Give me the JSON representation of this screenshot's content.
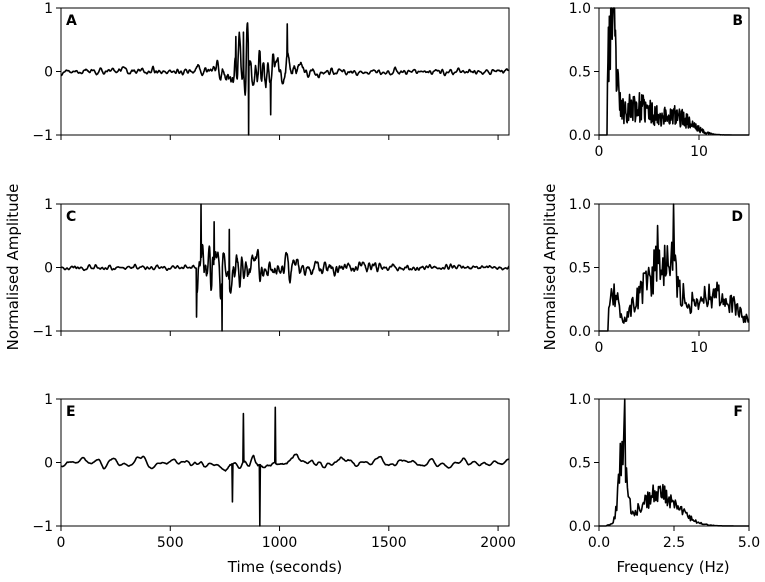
{
  "figure": {
    "xlabel_time": "Time (seconds)",
    "xlabel_freq": "Frequency (Hz)",
    "ylabel_left": "Normalised Amplitude",
    "ylabel_right": "Normalised Amplitude"
  },
  "colors": {
    "line": "#000000",
    "axis": "#000000",
    "background": "#ffffff"
  },
  "chart_data": [
    {
      "id": "A",
      "letter": "A",
      "type": "line",
      "xlim": [
        0,
        2050
      ],
      "ylim": [
        -1,
        1
      ],
      "xticks": [
        0,
        500,
        1000,
        1500,
        2000
      ],
      "show_xtick_labels": false,
      "yticks": [
        -1,
        0,
        1
      ],
      "ytick_labels": [
        "−1",
        "0",
        "1"
      ],
      "signal": {
        "kind": "time",
        "n": 1300,
        "period_s": 12,
        "noise": 0.06,
        "packets": [
          {
            "center": 900,
            "width": 170,
            "amp": 0.45
          }
        ],
        "spikes": [
          {
            "t": 858,
            "v": -1.0
          },
          {
            "t": 1035,
            "v": 0.75
          },
          {
            "t": 835,
            "v": 0.62
          },
          {
            "t": 800,
            "v": 0.55
          },
          {
            "t": 960,
            "v": -0.68
          }
        ],
        "seed": 11
      }
    },
    {
      "id": "B",
      "letter": "B",
      "type": "line",
      "xlim": [
        0,
        15
      ],
      "ylim": [
        0,
        1
      ],
      "xticks": [
        0,
        10
      ],
      "xtick_labels": [
        "0",
        "10"
      ],
      "show_xtick_labels": true,
      "yticks": [
        0,
        0.5,
        1
      ],
      "ytick_labels": [
        "0.0",
        "0.5",
        "1.0"
      ],
      "signal": {
        "kind": "spectrum",
        "n": 320,
        "onset": 0.8,
        "noise": 0.55,
        "peaks": [
          {
            "center": 1.3,
            "width": 0.5,
            "amp": 0.75
          },
          {
            "center": 3.5,
            "width": 3.0,
            "amp": 0.22
          },
          {
            "center": 8.0,
            "width": 2.0,
            "amp": 0.12
          }
        ],
        "fixed": [
          {
            "x": 1.2,
            "v": 1.0
          },
          {
            "x": 1.5,
            "v": 0.98
          }
        ],
        "seed": 23
      }
    },
    {
      "id": "C",
      "letter": "C",
      "type": "line",
      "xlim": [
        0,
        2050
      ],
      "ylim": [
        -1,
        1
      ],
      "xticks": [
        0,
        500,
        1000,
        1500,
        2000
      ],
      "show_xtick_labels": false,
      "yticks": [
        -1,
        0,
        1
      ],
      "ytick_labels": [
        "−1",
        "0",
        "1"
      ],
      "signal": {
        "kind": "time",
        "n": 1300,
        "period_s": 14,
        "noise": 0.03,
        "onset": 620,
        "decay": 300,
        "coda_amp": 0.55,
        "spikes": [
          {
            "t": 640,
            "v": 1.0
          },
          {
            "t": 737,
            "v": -1.0
          },
          {
            "t": 620,
            "v": -0.78
          },
          {
            "t": 700,
            "v": 0.72
          },
          {
            "t": 770,
            "v": 0.6
          }
        ],
        "seed": 37
      }
    },
    {
      "id": "D",
      "letter": "D",
      "type": "line",
      "xlim": [
        0,
        15
      ],
      "ylim": [
        0,
        1
      ],
      "xticks": [
        0,
        10
      ],
      "xtick_labels": [
        "0",
        "10"
      ],
      "show_xtick_labels": true,
      "yticks": [
        0,
        0.5,
        1
      ],
      "ytick_labels": [
        "0.0",
        "0.5",
        "1.0"
      ],
      "signal": {
        "kind": "spectrum",
        "n": 170,
        "onset": 0.9,
        "noise": 0.4,
        "peaks": [
          {
            "center": 1.5,
            "width": 0.6,
            "amp": 0.28
          },
          {
            "center": 4.0,
            "width": 1.5,
            "amp": 0.2
          },
          {
            "center": 6.5,
            "width": 1.8,
            "amp": 0.55
          },
          {
            "center": 11.5,
            "width": 3.0,
            "amp": 0.3
          }
        ],
        "fixed": [
          {
            "x": 7.5,
            "v": 1.0
          },
          {
            "x": 5.9,
            "v": 0.83
          }
        ],
        "seed": 53
      }
    },
    {
      "id": "E",
      "letter": "E",
      "type": "line",
      "xlim": [
        0,
        2050
      ],
      "ylim": [
        -1,
        1
      ],
      "xticks": [
        0,
        500,
        1000,
        1500,
        2000
      ],
      "xtick_labels": [
        "0",
        "500",
        "1000",
        "1500",
        "2000"
      ],
      "show_xtick_labels": true,
      "yticks": [
        -1,
        0,
        1
      ],
      "ytick_labels": [
        "−1",
        "0",
        "1"
      ],
      "signal": {
        "kind": "time",
        "n": 900,
        "period_s": 38,
        "noise": 0.08,
        "packets": [
          {
            "center": 880,
            "width": 90,
            "amp": 0.15
          }
        ],
        "spikes": [
          {
            "t": 835,
            "v": 0.77
          },
          {
            "t": 910,
            "v": -1.0
          },
          {
            "t": 980,
            "v": 0.87
          },
          {
            "t": 785,
            "v": -0.62
          }
        ],
        "seed": 71
      }
    },
    {
      "id": "F",
      "letter": "F",
      "type": "line",
      "xlim": [
        0,
        5
      ],
      "ylim": [
        0,
        1
      ],
      "xticks": [
        0,
        2.5,
        5
      ],
      "xtick_labels": [
        "0.0",
        "2.5",
        "5.0"
      ],
      "show_xtick_labels": true,
      "yticks": [
        0,
        0.5,
        1
      ],
      "ytick_labels": [
        "0.0",
        "0.5",
        "1.0"
      ],
      "signal": {
        "kind": "spectrum",
        "n": 170,
        "onset": 0.25,
        "noise": 0.35,
        "peaks": [
          {
            "center": 0.8,
            "width": 0.18,
            "amp": 0.58
          },
          {
            "center": 2.0,
            "width": 0.9,
            "amp": 0.25
          }
        ],
        "fixed": [
          {
            "x": 0.87,
            "v": 1.0
          }
        ],
        "seed": 89
      }
    }
  ]
}
